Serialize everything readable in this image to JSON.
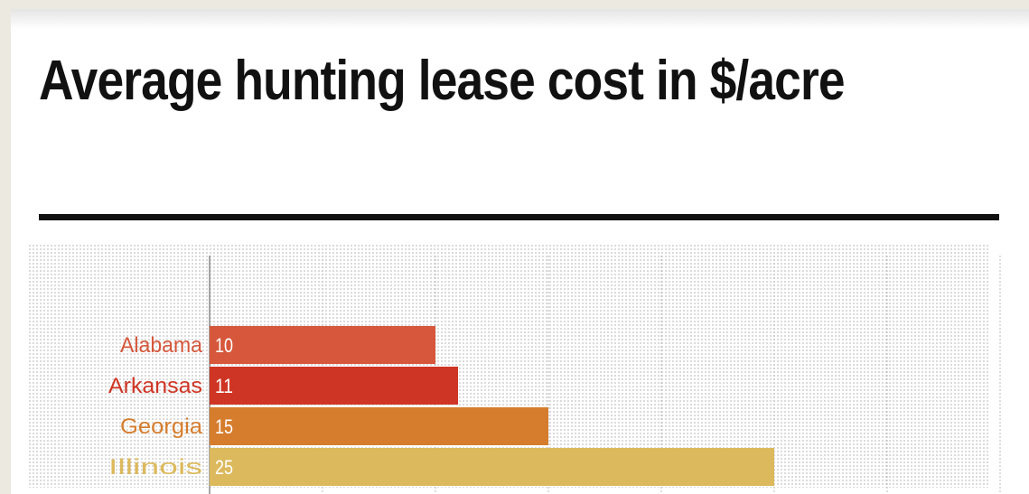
{
  "chart_data": {
    "type": "bar",
    "orientation": "horizontal",
    "title": "Average hunting lease cost in $/acre",
    "categories": [
      "Alabama",
      "Arkansas",
      "Georgia",
      "Illinois"
    ],
    "values": [
      10,
      11,
      15,
      25
    ],
    "bar_colors": [
      "#d6573b",
      "#cf3524",
      "#d67d2d",
      "#dcb95c"
    ],
    "xlim": [
      0,
      35
    ],
    "x_gridline_step": 5,
    "grid": true,
    "value_labels": true
  }
}
